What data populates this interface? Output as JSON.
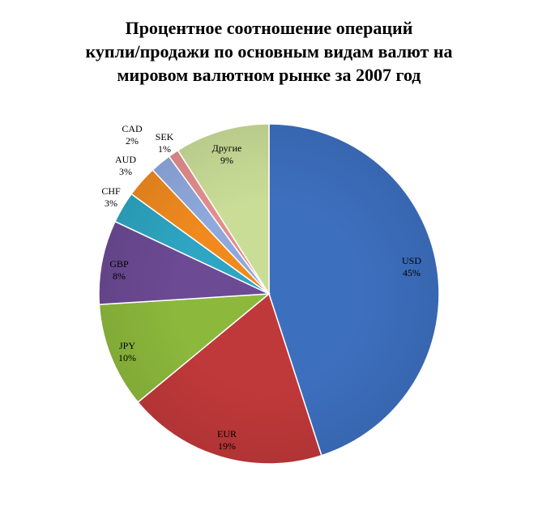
{
  "chart_data": {
    "type": "pie",
    "title_lines": [
      "Процентное соотношение операций",
      "купли/продажи по основным видам валют на",
      "мировом валютном рынке за 2007 год"
    ],
    "slices": [
      {
        "label": "USD",
        "value": 45,
        "value_label": "45%",
        "color": "#3d6fbf"
      },
      {
        "label": "EUR",
        "value": 19,
        "value_label": "19%",
        "color": "#c0393a"
      },
      {
        "label": "JPY",
        "value": 10,
        "value_label": "10%",
        "color": "#8cb93c"
      },
      {
        "label": "GBP",
        "value": 8,
        "value_label": "8%",
        "color": "#6c4a94"
      },
      {
        "label": "CHF",
        "value": 3,
        "value_label": "3%",
        "color": "#2ea5c2"
      },
      {
        "label": "AUD",
        "value": 3,
        "value_label": "3%",
        "color": "#f08a1f"
      },
      {
        "label": "CAD",
        "value": 2,
        "value_label": "2%",
        "color": "#8fa9dd"
      },
      {
        "label": "SEK",
        "value": 1,
        "value_label": "1%",
        "color": "#e38d8c"
      },
      {
        "label": "Другие",
        "value": 9,
        "value_label": "9%",
        "color": "#c9dd97"
      }
    ],
    "start_angle_deg": 0,
    "direction": "clockwise",
    "legend": "none"
  }
}
